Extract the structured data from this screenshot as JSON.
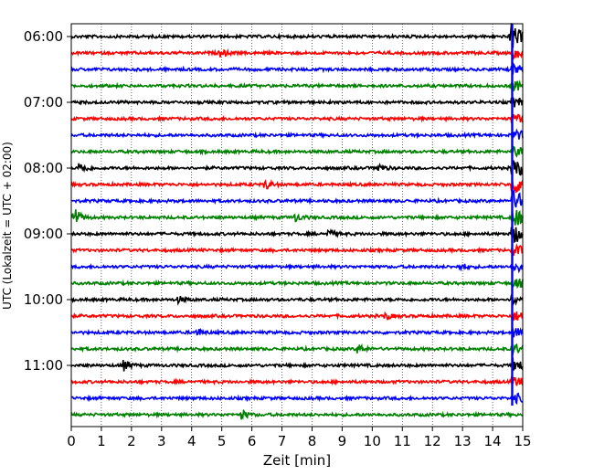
{
  "chart_data": {
    "type": "line",
    "title": "",
    "xlabel": "Zeit  [min]",
    "ylabel": "UTC (Lokalzeit = UTC + 02:00)",
    "xlim": [
      0,
      15
    ],
    "x_ticks": [
      0,
      1,
      2,
      3,
      4,
      5,
      6,
      7,
      8,
      9,
      10,
      11,
      12,
      13,
      14,
      15
    ],
    "x_tick_labels": [
      "0",
      "1",
      "2",
      "3",
      "4",
      "5",
      "6",
      "7",
      "8",
      "9",
      "10",
      "11",
      "12",
      "13",
      "14",
      "15"
    ],
    "y_tick_labels": [
      "06:00",
      "07:00",
      "08:00",
      "09:00",
      "10:00",
      "11:00"
    ],
    "y_tick_rows": [
      0,
      4,
      8,
      12,
      16,
      20
    ],
    "grid": {
      "x": true,
      "style": "dotted"
    },
    "row_interval_min": 15,
    "row_start": "06:00",
    "row_colors": [
      "#000000",
      "#ff0000",
      "#0000ff",
      "#008000"
    ],
    "rows": 24,
    "events": [
      {
        "row": 0,
        "x": 14.65,
        "amp": 0.7
      },
      {
        "row": 1,
        "x": 5.0,
        "amp": 0.25
      },
      {
        "row": 8,
        "x": 0.35,
        "amp": 0.35
      },
      {
        "row": 8,
        "x": 10.2,
        "amp": 0.3
      },
      {
        "row": 9,
        "x": 6.5,
        "amp": 0.3
      },
      {
        "row": 11,
        "x": 0.15,
        "amp": 0.6
      },
      {
        "row": 11,
        "x": 7.5,
        "amp": 0.25
      },
      {
        "row": 12,
        "x": 8.6,
        "amp": 0.25
      },
      {
        "row": 14,
        "x": 13.0,
        "amp": 0.2
      },
      {
        "row": 16,
        "x": 3.6,
        "amp": 0.2
      },
      {
        "row": 17,
        "x": 10.5,
        "amp": 0.2
      },
      {
        "row": 18,
        "x": 4.2,
        "amp": 0.25
      },
      {
        "row": 19,
        "x": 9.6,
        "amp": 0.3
      },
      {
        "row": 20,
        "x": 1.8,
        "amp": 0.35
      },
      {
        "row": 23,
        "x": 5.7,
        "amp": 0.3
      }
    ],
    "quake": {
      "x": 14.65,
      "rows": [
        0,
        22
      ],
      "line_to_row": 22
    }
  }
}
